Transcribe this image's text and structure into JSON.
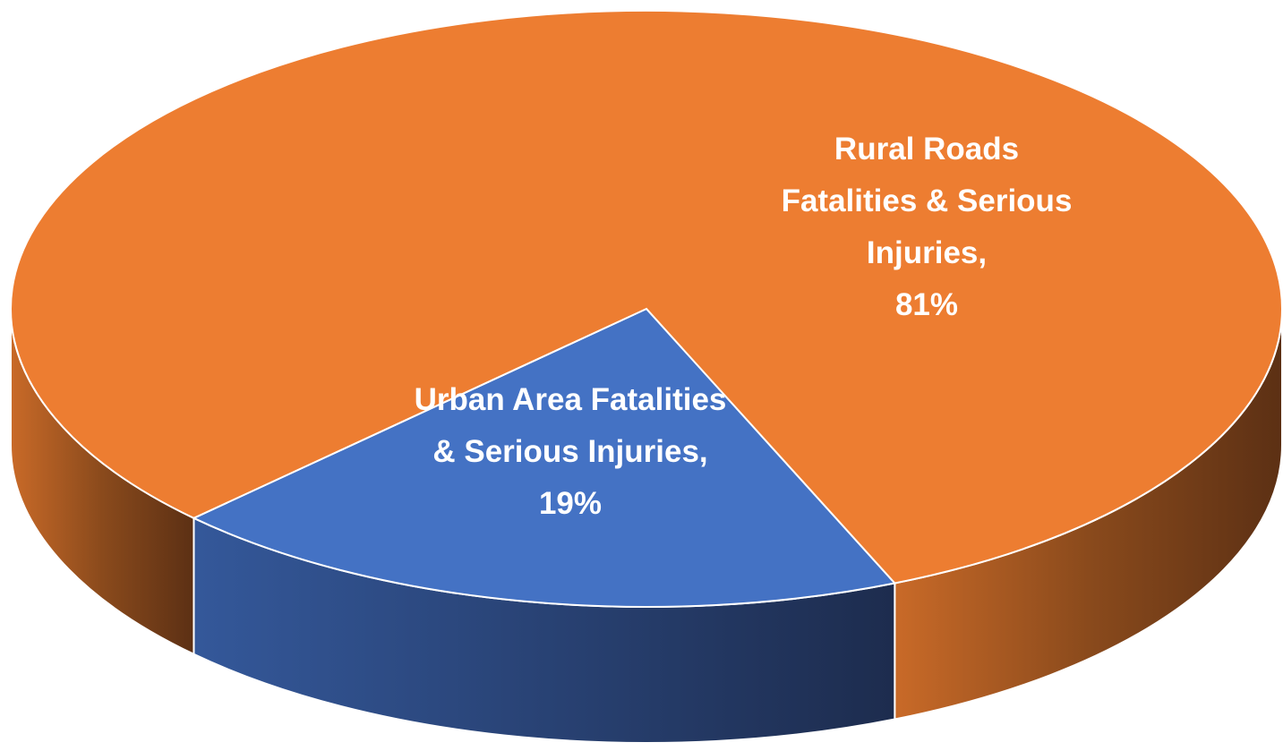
{
  "chart_data": {
    "type": "pie",
    "categories": [
      "Urban Area Fatalities & Serious Injuries,",
      "Rural Roads Fatalities & Serious Injuries,"
    ],
    "values": [
      19,
      81
    ],
    "value_labels": [
      "19%",
      "81%"
    ],
    "colors": [
      "#4472c4",
      "#ed7d31"
    ]
  }
}
